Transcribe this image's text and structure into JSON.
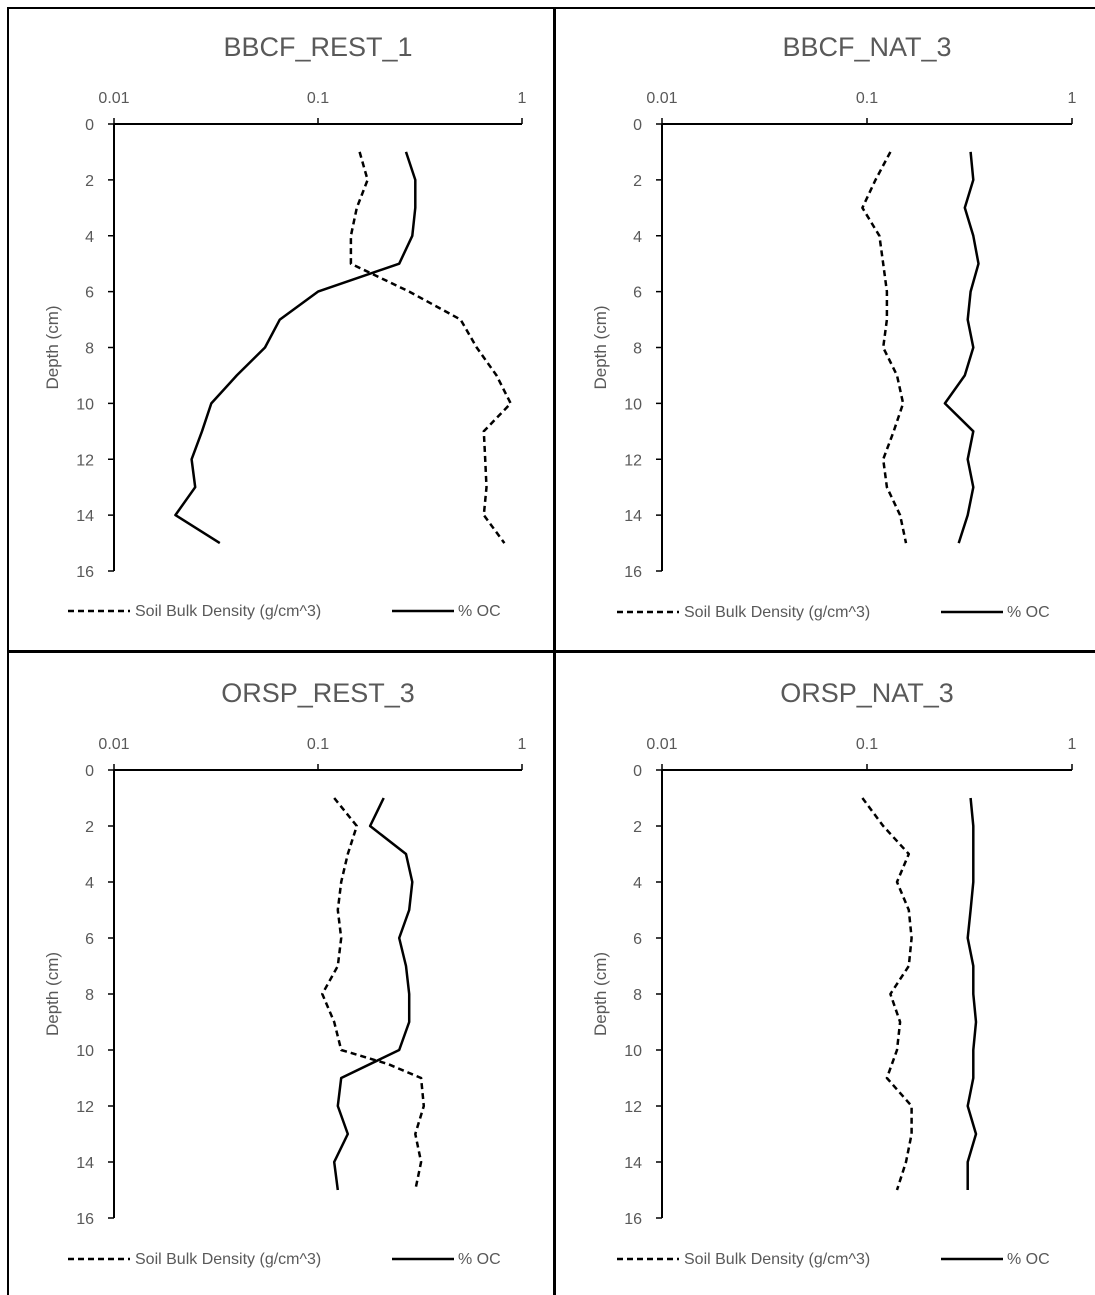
{
  "legend": {
    "bulk_density": "Soil Bulk Density (g/cm^3)",
    "oc": "% OC"
  },
  "y_axis_label": "Depth (cm)",
  "chart_data": [
    {
      "type": "line",
      "title": "BBCF_REST_1",
      "x_scale": "log",
      "xlim": [
        0.01,
        1
      ],
      "x_ticks": [
        "0.01",
        "0.1",
        "1"
      ],
      "ylim": [
        0,
        16
      ],
      "y_ticks": [
        "0",
        "2",
        "4",
        "6",
        "8",
        "10",
        "12",
        "14",
        "16"
      ],
      "ylabel": "Depth (cm)",
      "grid": false,
      "legend_position": "bottom",
      "series": [
        {
          "name": "Soil Bulk Density (g/cm^3)",
          "style": "dashed",
          "points": [
            [
              0.16,
              1
            ],
            [
              0.175,
              2
            ],
            [
              0.155,
              3
            ],
            [
              0.145,
              4
            ],
            [
              0.145,
              5
            ],
            [
              0.28,
              6
            ],
            [
              0.5,
              7
            ],
            [
              0.6,
              8
            ],
            [
              0.75,
              9
            ],
            [
              0.88,
              10
            ],
            [
              0.65,
              11
            ],
            [
              0.66,
              12
            ],
            [
              0.67,
              13
            ],
            [
              0.65,
              14
            ],
            [
              0.82,
              15
            ]
          ]
        },
        {
          "name": "% OC",
          "style": "solid",
          "points": [
            [
              0.27,
              1
            ],
            [
              0.3,
              2
            ],
            [
              0.3,
              3
            ],
            [
              0.29,
              4
            ],
            [
              0.25,
              5
            ],
            [
              0.1,
              6
            ],
            [
              0.065,
              7
            ],
            [
              0.055,
              8
            ],
            [
              0.04,
              9
            ],
            [
              0.03,
              10
            ],
            [
              0.027,
              11
            ],
            [
              0.024,
              12
            ],
            [
              0.025,
              13
            ],
            [
              0.02,
              14
            ],
            [
              0.033,
              15
            ]
          ]
        }
      ]
    },
    {
      "type": "line",
      "title": "BBCF_NAT_3",
      "x_scale": "log",
      "xlim": [
        0.01,
        1
      ],
      "x_ticks": [
        "0.01",
        "0.1",
        "1"
      ],
      "ylim": [
        0,
        16
      ],
      "y_ticks": [
        "0",
        "2",
        "4",
        "6",
        "8",
        "10",
        "12",
        "14",
        "16"
      ],
      "ylabel": "Depth (cm)",
      "grid": false,
      "legend_position": "bottom",
      "series": [
        {
          "name": "Soil Bulk Density (g/cm^3)",
          "style": "dashed",
          "points": [
            [
              0.13,
              1
            ],
            [
              0.11,
              2
            ],
            [
              0.095,
              3
            ],
            [
              0.115,
              4
            ],
            [
              0.12,
              5
            ],
            [
              0.125,
              6
            ],
            [
              0.125,
              7
            ],
            [
              0.12,
              8
            ],
            [
              0.14,
              9
            ],
            [
              0.15,
              10
            ],
            [
              0.135,
              11
            ],
            [
              0.12,
              12
            ],
            [
              0.125,
              13
            ],
            [
              0.145,
              14
            ],
            [
              0.155,
              15
            ]
          ]
        },
        {
          "name": "% OC",
          "style": "solid",
          "points": [
            [
              0.32,
              1
            ],
            [
              0.33,
              2
            ],
            [
              0.3,
              3
            ],
            [
              0.33,
              4
            ],
            [
              0.35,
              5
            ],
            [
              0.32,
              6
            ],
            [
              0.31,
              7
            ],
            [
              0.33,
              8
            ],
            [
              0.3,
              9
            ],
            [
              0.24,
              10
            ],
            [
              0.33,
              11
            ],
            [
              0.31,
              12
            ],
            [
              0.33,
              13
            ],
            [
              0.31,
              14
            ],
            [
              0.28,
              15
            ]
          ]
        }
      ]
    },
    {
      "type": "line",
      "title": "ORSP_REST_3",
      "x_scale": "log",
      "xlim": [
        0.01,
        1
      ],
      "x_ticks": [
        "0.01",
        "0.1",
        "1"
      ],
      "ylim": [
        0,
        16
      ],
      "y_ticks": [
        "0",
        "2",
        "4",
        "6",
        "8",
        "10",
        "12",
        "14",
        "16"
      ],
      "ylabel": "Depth (cm)",
      "grid": false,
      "legend_position": "bottom",
      "series": [
        {
          "name": "Soil Bulk Density (g/cm^3)",
          "style": "dashed",
          "points": [
            [
              0.12,
              1
            ],
            [
              0.155,
              2
            ],
            [
              0.14,
              3
            ],
            [
              0.13,
              4
            ],
            [
              0.125,
              5
            ],
            [
              0.13,
              6
            ],
            [
              0.125,
              7
            ],
            [
              0.105,
              8
            ],
            [
              0.12,
              9
            ],
            [
              0.13,
              10
            ],
            [
              0.22,
              10.5
            ],
            [
              0.32,
              11
            ],
            [
              0.33,
              12
            ],
            [
              0.3,
              13
            ],
            [
              0.32,
              14
            ],
            [
              0.3,
              15
            ]
          ]
        },
        {
          "name": "% OC",
          "style": "solid",
          "points": [
            [
              0.21,
              1
            ],
            [
              0.18,
              2
            ],
            [
              0.27,
              3
            ],
            [
              0.29,
              4
            ],
            [
              0.28,
              5
            ],
            [
              0.25,
              6
            ],
            [
              0.27,
              7
            ],
            [
              0.28,
              8
            ],
            [
              0.28,
              9
            ],
            [
              0.25,
              10
            ],
            [
              0.13,
              11
            ],
            [
              0.125,
              12
            ],
            [
              0.14,
              13
            ],
            [
              0.12,
              14
            ],
            [
              0.125,
              15
            ]
          ]
        }
      ]
    },
    {
      "type": "line",
      "title": "ORSP_NAT_3",
      "x_scale": "log",
      "xlim": [
        0.01,
        1
      ],
      "x_ticks": [
        "0.01",
        "0.1",
        "1"
      ],
      "ylim": [
        0,
        16
      ],
      "y_ticks": [
        "0",
        "2",
        "4",
        "6",
        "8",
        "10",
        "12",
        "14",
        "16"
      ],
      "ylabel": "Depth (cm)",
      "grid": false,
      "legend_position": "bottom",
      "series": [
        {
          "name": "Soil Bulk Density (g/cm^3)",
          "style": "dashed",
          "points": [
            [
              0.095,
              1
            ],
            [
              0.12,
              2
            ],
            [
              0.16,
              3
            ],
            [
              0.14,
              4
            ],
            [
              0.16,
              5
            ],
            [
              0.165,
              6
            ],
            [
              0.16,
              7
            ],
            [
              0.13,
              8
            ],
            [
              0.145,
              9
            ],
            [
              0.14,
              10
            ],
            [
              0.125,
              11
            ],
            [
              0.165,
              12
            ],
            [
              0.165,
              13
            ],
            [
              0.155,
              14
            ],
            [
              0.14,
              15
            ]
          ]
        },
        {
          "name": "% OC",
          "style": "solid",
          "points": [
            [
              0.32,
              1
            ],
            [
              0.33,
              2
            ],
            [
              0.33,
              3
            ],
            [
              0.33,
              4
            ],
            [
              0.32,
              5
            ],
            [
              0.31,
              6
            ],
            [
              0.33,
              7
            ],
            [
              0.33,
              8
            ],
            [
              0.34,
              9
            ],
            [
              0.33,
              10
            ],
            [
              0.33,
              11
            ],
            [
              0.31,
              12
            ],
            [
              0.34,
              13
            ],
            [
              0.31,
              14
            ],
            [
              0.31,
              15
            ]
          ]
        }
      ]
    }
  ]
}
